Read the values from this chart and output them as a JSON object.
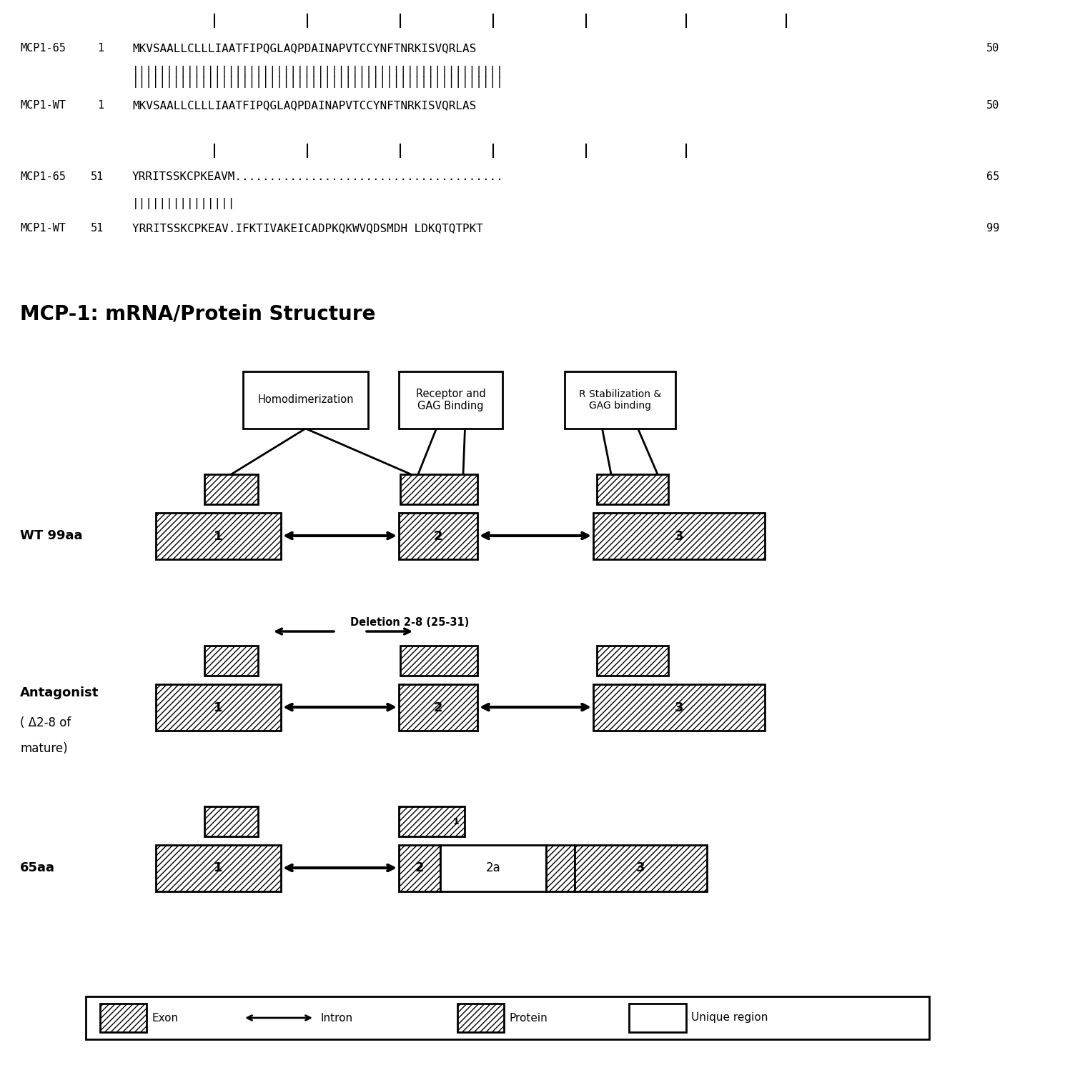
{
  "fig_w": 14.97,
  "fig_h": 15.19,
  "dpi": 100,
  "seq1_label1": "MCP1-65",
  "seq1_num1": "1",
  "seq1_seq1": "MKVSAALLCLLLIAATFIPQGLAQPDAINAPVTCCYNFTNRKISVQRLAS",
  "seq1_end1": "50",
  "seq1_match": "||||||||||||||||||||||||||||||||||||||||||||||||||||||",
  "seq1_label2": "MCP1-WT",
  "seq1_num2": "1",
  "seq1_seq2": "MKVSAALLCLLLIAATFIPQGLAQPDAINAPVTCCYNFTNRKISVQRLAS",
  "seq1_end2": "50",
  "seq2_label1": "MCP1-65",
  "seq2_num1": "51",
  "seq2_seq1": "YRRITSSKCPKEAVM.......................................",
  "seq2_end1": "65",
  "seq2_match": "|||||||||||||||",
  "seq2_label2": "MCP1-WT",
  "seq2_num2": "51",
  "seq2_seq2": "YRRITSSKCPKEAV.IFKTIVAKEICADPKQKWVQDSMDH LDKQTQTPKT",
  "seq2_end2": "99",
  "diagram_title": "MCP-1: mRNA/Protein Structure",
  "wt_label": "WT 99aa",
  "ant_label1": "Antagonist",
  "ant_label2": "( Δ2-8 of",
  "ant_label3": "mature)",
  "aa65_label": "65aa",
  "del_label": "Deletion 2-8 (25-31)",
  "box1_label": "Homodimerization",
  "box2_label": "Receptor and\nGAG Binding",
  "box3_label": "R Stabilization &\nGAG binding",
  "leg_exon": "Exon",
  "leg_intron": "Intron",
  "leg_protein": "Protein",
  "leg_unique": "Unique region"
}
